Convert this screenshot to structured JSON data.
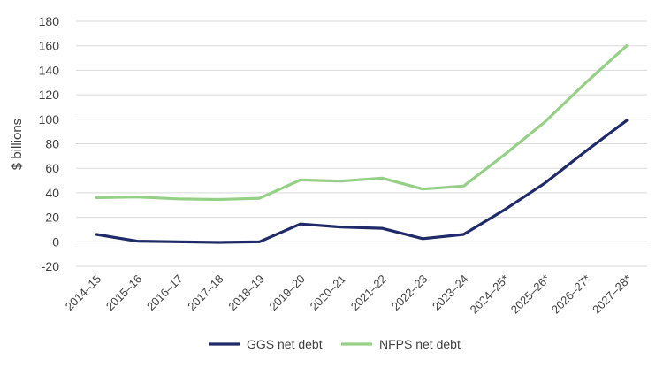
{
  "chart_data": {
    "type": "line",
    "title": "",
    "xlabel": "",
    "ylabel": "$ billions",
    "ylim": [
      -20,
      180
    ],
    "yticks": [
      -20,
      0,
      20,
      40,
      60,
      80,
      100,
      120,
      140,
      160,
      180
    ],
    "grid": "horizontal",
    "legend": "bottom",
    "categories": [
      "2014–15",
      "2015–16",
      "2016–17",
      "2017–18",
      "2018–19",
      "2019–20",
      "2020–21",
      "2021–22",
      "2022–23",
      "2023–24",
      "2024–25*",
      "2025–26*",
      "2026–27*",
      "2027–28*"
    ],
    "series": [
      {
        "name": "GGS net debt",
        "color": "#1f2a68",
        "values": [
          6,
          0.5,
          0,
          -0.5,
          0,
          14.5,
          12,
          11,
          2.5,
          6,
          26,
          48,
          74,
          99
        ]
      },
      {
        "name": "NFPS net debt",
        "color": "#94d085",
        "values": [
          36,
          36.5,
          35,
          34.5,
          35.5,
          50.5,
          49.5,
          52,
          43,
          45.5,
          71,
          98,
          130,
          160
        ]
      }
    ]
  }
}
